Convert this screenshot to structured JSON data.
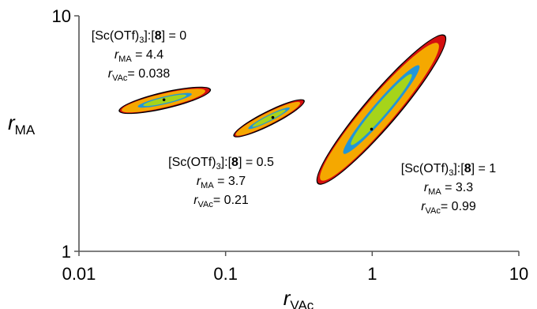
{
  "chart_data": {
    "type": "scatter",
    "title": "",
    "xlabel": {
      "main": "r",
      "sub": "VAc"
    },
    "ylabel": {
      "main": "r",
      "sub": "MA"
    },
    "x_scale": "log",
    "y_scale": "log",
    "xlim": [
      0.01,
      10
    ],
    "ylim": [
      1,
      10
    ],
    "xticks": [
      {
        "value": 0.01,
        "label": "0.01"
      },
      {
        "value": 0.1,
        "label": "0.1"
      },
      {
        "value": 1,
        "label": "1"
      },
      {
        "value": 10,
        "label": "10"
      }
    ],
    "yticks": [
      {
        "value": 1,
        "label": "1"
      },
      {
        "value": 10,
        "label": "10"
      }
    ],
    "grid": false,
    "legend": "none",
    "confidence_colors": [
      "#2196d8",
      "#a6d41a",
      "#f5a800",
      "#d40f0f",
      "#000000"
    ],
    "series": [
      {
        "point": {
          "x": 0.038,
          "y": 4.4
        },
        "region": {
          "x_min": 0.019,
          "x_max": 0.078,
          "y_min": 3.95,
          "y_max": 4.85
        },
        "annotation": {
          "ratio_label": "[Sc(OTf)",
          "ratio_sub": "3",
          "ratio_mid": "]:[",
          "ratio_bold": "8",
          "ratio_end": "] = 0",
          "r_ma_value": "4.4",
          "r_vac_value": "0.038"
        }
      },
      {
        "point": {
          "x": 0.21,
          "y": 3.7
        },
        "region": {
          "x_min": 0.115,
          "x_max": 0.34,
          "y_min": 3.1,
          "y_max": 4.35
        },
        "annotation": {
          "ratio_label": "[Sc(OTf)",
          "ratio_sub": "3",
          "ratio_mid": "]:[",
          "ratio_bold": "8",
          "ratio_end": "] = 0.5",
          "r_ma_value": "3.7",
          "r_vac_value": "0.21"
        }
      },
      {
        "point": {
          "x": 0.99,
          "y": 3.3
        },
        "region": {
          "x_min": 0.43,
          "x_max": 3.1,
          "y_min": 1.95,
          "y_max": 8.2
        },
        "annotation": {
          "ratio_label": "[Sc(OTf)",
          "ratio_sub": "3",
          "ratio_mid": "]:[",
          "ratio_bold": "8",
          "ratio_end": "] = 1",
          "r_ma_value": "3.3",
          "r_vac_value": "0.99"
        }
      }
    ],
    "text_tokens": {
      "r": "r",
      "ma_sub": "MA",
      "vac_sub": "VAc",
      "equals": " = ",
      "equals_tight": "= "
    }
  }
}
